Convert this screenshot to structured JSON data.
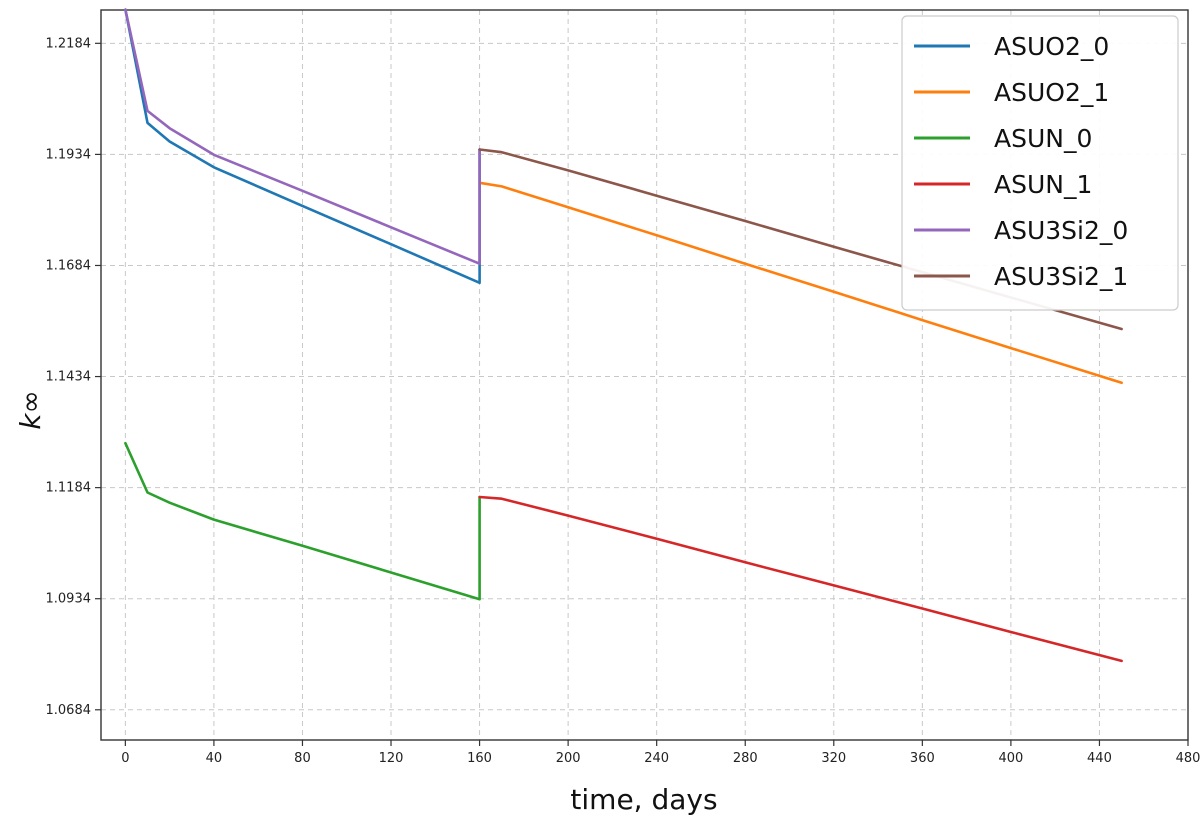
{
  "chart_data": {
    "type": "line",
    "title": "",
    "xlabel": "time, days",
    "ylabel": "k∞",
    "xlim": [
      -11,
      480
    ],
    "ylim": [
      1.0616,
      1.2259
    ],
    "x_ticks": [
      0,
      40,
      80,
      120,
      160,
      200,
      240,
      280,
      320,
      360,
      400,
      440,
      480
    ],
    "y_ticks": [
      1.0684,
      1.0934,
      1.1184,
      1.1434,
      1.1684,
      1.1934,
      1.2184
    ],
    "x_tick_labels": [
      "0",
      "40",
      "80",
      "120",
      "160",
      "200",
      "240",
      "280",
      "320",
      "360",
      "400",
      "440",
      "480"
    ],
    "y_tick_labels": [
      "1.0684",
      "1.0934",
      "1.1184",
      "1.1434",
      "1.1684",
      "1.1934",
      "1.2184"
    ],
    "grid": true,
    "legend_position": "top-right",
    "series": [
      {
        "name": "ASUO2_0",
        "color": "#1f77b4",
        "x": [
          0,
          10,
          20,
          40,
          80,
          120,
          160,
          160
        ],
        "y": [
          1.226,
          1.2005,
          1.1963,
          1.1905,
          1.1818,
          1.1732,
          1.1645,
          1.1945
        ]
      },
      {
        "name": "ASUO2_1",
        "color": "#ff7f0e",
        "x": [
          160,
          170,
          200,
          240,
          280,
          320,
          360,
          400,
          450
        ],
        "y": [
          1.187,
          1.1862,
          1.1815,
          1.1752,
          1.1688,
          1.1625,
          1.1561,
          1.1498,
          1.142
        ]
      },
      {
        "name": "ASUN_0",
        "color": "#2ca02c",
        "x": [
          0,
          10,
          20,
          40,
          80,
          120,
          160,
          160
        ],
        "y": [
          1.1284,
          1.1173,
          1.115,
          1.1112,
          1.1053,
          1.0993,
          1.0933,
          1.1163
        ]
      },
      {
        "name": "ASUN_1",
        "color": "#d62728",
        "x": [
          160,
          170,
          200,
          240,
          280,
          320,
          360,
          400,
          450
        ],
        "y": [
          1.1163,
          1.1159,
          1.1121,
          1.1069,
          1.1016,
          1.0964,
          1.0912,
          1.0859,
          1.0794
        ]
      },
      {
        "name": "ASU3Si2_0",
        "color": "#9467bd",
        "x": [
          0,
          10,
          20,
          40,
          80,
          120,
          160,
          160
        ],
        "y": [
          1.226,
          1.2032,
          1.1993,
          1.1933,
          1.1852,
          1.177,
          1.1688,
          1.1945
        ]
      },
      {
        "name": "ASU3Si2_1",
        "color": "#8c564b",
        "x": [
          160,
          170,
          200,
          240,
          280,
          320,
          360,
          400,
          450
        ],
        "y": [
          1.1945,
          1.1939,
          1.1898,
          1.1841,
          1.1784,
          1.1726,
          1.1669,
          1.1612,
          1.1541
        ]
      }
    ]
  }
}
